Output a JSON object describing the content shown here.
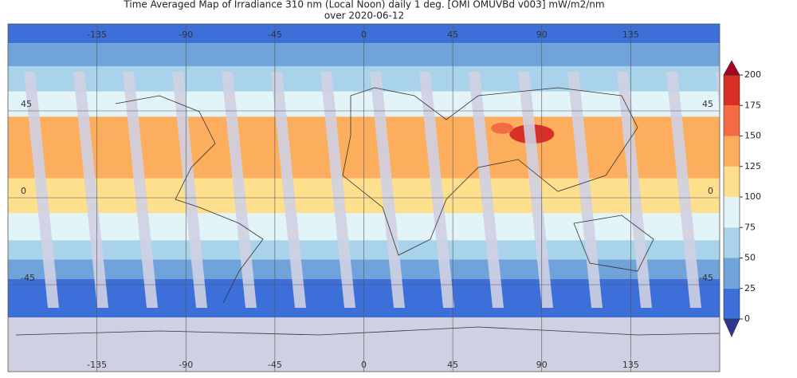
{
  "title_lines": [
    "Time Averaged Map of Irradiance 310 nm (Local Noon) daily 1 deg. [OMI OMUVBd v003] mW/m2/nm",
    "over 2020-06-12"
  ],
  "map": {
    "lon_ticks": [
      -135,
      -90,
      -45,
      0,
      45,
      90,
      135
    ],
    "lat_ticks": [
      45,
      0,
      -45
    ],
    "lonlim": [
      -180,
      180
    ],
    "latlim": [
      -90,
      90
    ]
  },
  "colorbar": {
    "lim": [
      0,
      200
    ],
    "ticks": [
      0,
      25,
      50,
      75,
      100,
      125,
      150,
      175,
      200
    ],
    "colors": [
      "#3d6fd8",
      "#6fa3d9",
      "#a8d3ea",
      "#e3f4f8",
      "#fedf8e",
      "#fcae5e",
      "#f26b43",
      "#d83027"
    ],
    "under_color": "#2d3590",
    "over_color": "#a50026"
  }
}
